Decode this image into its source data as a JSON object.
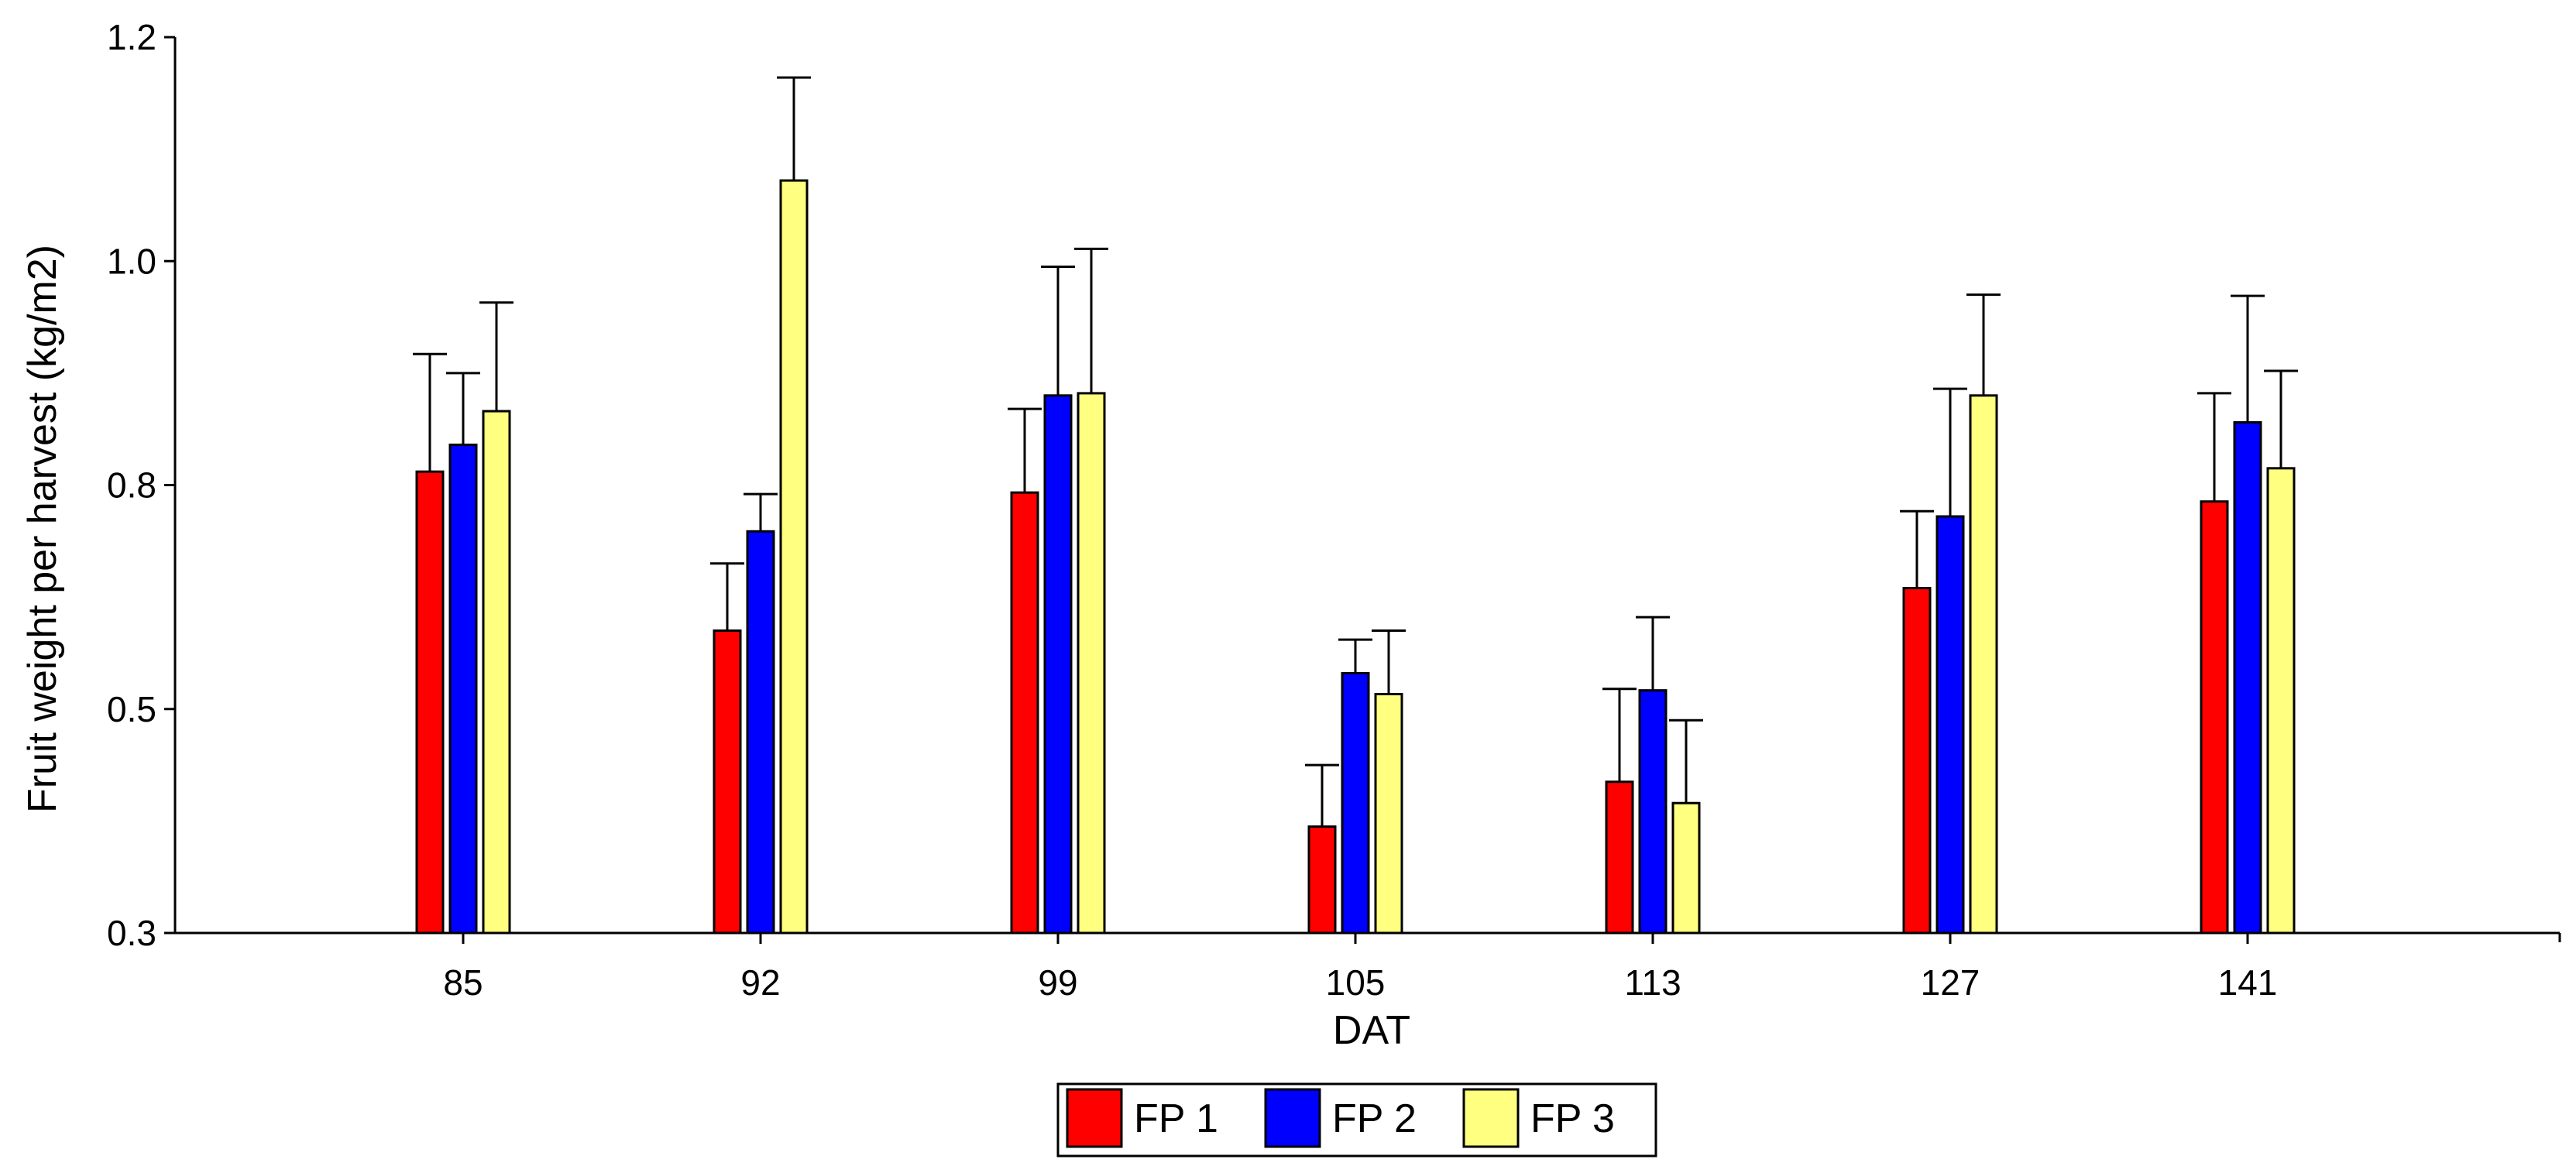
{
  "chart_data": {
    "type": "bar",
    "xlabel": "DAT",
    "ylabel": "Fruit weight per harvest (kg/m2)",
    "ylim": [
      0.3,
      1.2
    ],
    "yticks": [
      {
        "value": 0.3,
        "label": "0.3"
      },
      {
        "value": 0.5,
        "label": "0.5"
      },
      {
        "value": 0.8,
        "label": "0.8"
      },
      {
        "value": 1.0,
        "label": "1.0"
      },
      {
        "value": 1.2,
        "label": "1.2"
      }
    ],
    "categories": [
      "85",
      "92",
      "99",
      "105",
      "113",
      "127",
      "141"
    ],
    "error_bars": "positive",
    "legend_position": "bottom-center",
    "grid": false,
    "series": [
      {
        "name": "FP 1",
        "color": "#ff0000",
        "values": [
          0.812,
          0.605,
          0.79,
          0.395,
          0.435,
          0.662,
          0.778
        ],
        "errors": [
          0.105,
          0.09,
          0.078,
          0.055,
          0.092,
          0.103,
          0.104
        ]
      },
      {
        "name": "FP 2",
        "color": "#0000ff",
        "values": [
          0.836,
          0.738,
          0.88,
          0.548,
          0.525,
          0.758,
          0.856
        ],
        "errors": [
          0.064,
          0.05,
          0.115,
          0.045,
          0.098,
          0.128,
          0.113
        ]
      },
      {
        "name": "FP 3",
        "color": "#ffff80",
        "values": [
          0.866,
          1.072,
          0.882,
          0.52,
          0.416,
          0.88,
          0.815
        ],
        "errors": [
          0.097,
          0.092,
          0.129,
          0.085,
          0.074,
          0.09,
          0.087
        ]
      }
    ]
  }
}
